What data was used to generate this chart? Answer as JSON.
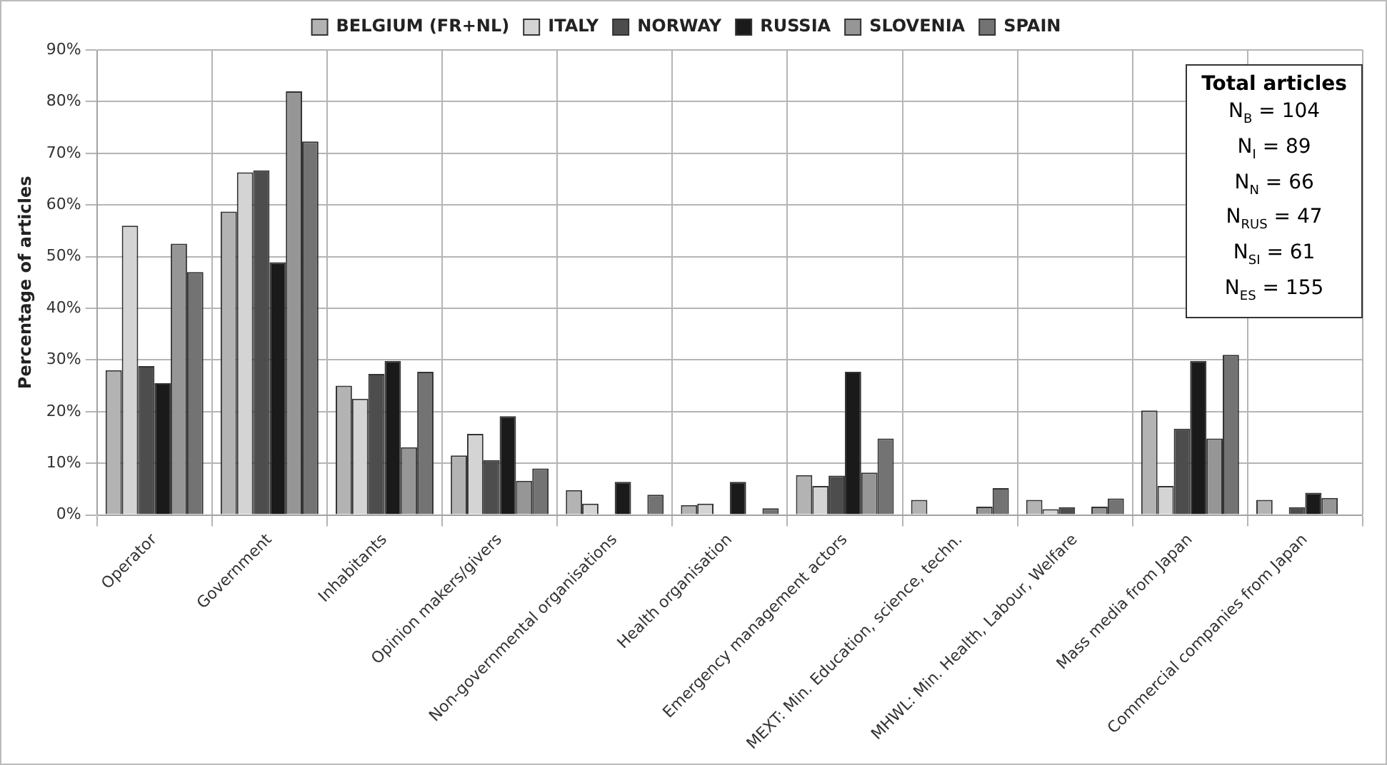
{
  "chart_data": {
    "type": "bar",
    "ylabel": "Percentage of articles",
    "categories": [
      "Operator",
      "Government",
      "Inhabitants",
      "Opinion makers/givers",
      "Non-governmental organisations",
      "Health organisation",
      "Emergency management actors",
      "MEXT: Min. Education, science, techn.",
      "MHWL: Min. Health, Labour, Welfare",
      "Mass media from Japan",
      "Commercial companies from Japan"
    ],
    "series": [
      {
        "name": "BELGIUM (FR+NL)",
        "color": "#b3b3b3",
        "values": [
          28,
          58.7,
          25,
          11.5,
          4.8,
          1.9,
          7.7,
          2.9,
          2.9,
          20.2,
          2.9
        ]
      },
      {
        "name": "ITALY",
        "color": "#d4d4d4",
        "values": [
          56,
          66.3,
          22.5,
          15.7,
          2.2,
          2.2,
          5.6,
          0,
          1.1,
          5.6,
          0
        ]
      },
      {
        "name": "NORWAY",
        "color": "#4d4d4d",
        "values": [
          28.8,
          66.7,
          27.3,
          10.6,
          0,
          0,
          7.6,
          0,
          1.5,
          16.7,
          1.5
        ]
      },
      {
        "name": "RUSSIA",
        "color": "#1a1a1a",
        "values": [
          25.5,
          48.9,
          29.8,
          19.1,
          6.4,
          6.4,
          27.7,
          0,
          0,
          29.8,
          4.3
        ]
      },
      {
        "name": "SLOVENIA",
        "color": "#969696",
        "values": [
          52.5,
          82,
          13.1,
          6.6,
          0,
          0,
          8.2,
          1.6,
          1.6,
          14.8,
          3.3
        ]
      },
      {
        "name": "SPAIN",
        "color": "#737373",
        "values": [
          47,
          72.3,
          27.7,
          9,
          3.9,
          1.3,
          14.8,
          5.2,
          3.2,
          31,
          0
        ]
      }
    ],
    "ylim": [
      0,
      90
    ],
    "yticks": [
      {
        "value": 0,
        "label": "0%"
      },
      {
        "value": 10,
        "label": "10%"
      },
      {
        "value": 20,
        "label": "20%"
      },
      {
        "value": 30,
        "label": "30%"
      },
      {
        "value": 40,
        "label": "40%"
      },
      {
        "value": 50,
        "label": "50%"
      },
      {
        "value": 60,
        "label": "60%"
      },
      {
        "value": 70,
        "label": "70%"
      },
      {
        "value": 80,
        "label": "80%"
      },
      {
        "value": 90,
        "label": "90%"
      }
    ],
    "grid": true,
    "legend": "top",
    "annotations": [
      "Total articles",
      "N$_{B}$ = 104",
      "N$_{I}$ = 89",
      "N$_{N}$ = 66",
      "N$_{RUS}$ = 47",
      "N$_{SI}$ = 61",
      "N$_{ES}$ = 155"
    ]
  }
}
